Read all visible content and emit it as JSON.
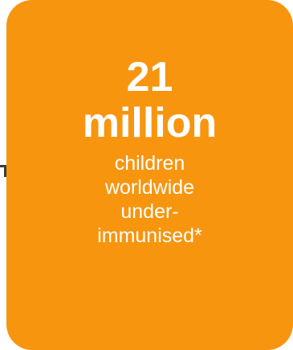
{
  "card": {
    "number": "21",
    "unit": "million",
    "description_lines": [
      "children",
      "worldwide",
      "under-",
      "immunised*"
    ],
    "background_color": "#f7950f",
    "text_color": "#ffffff"
  }
}
